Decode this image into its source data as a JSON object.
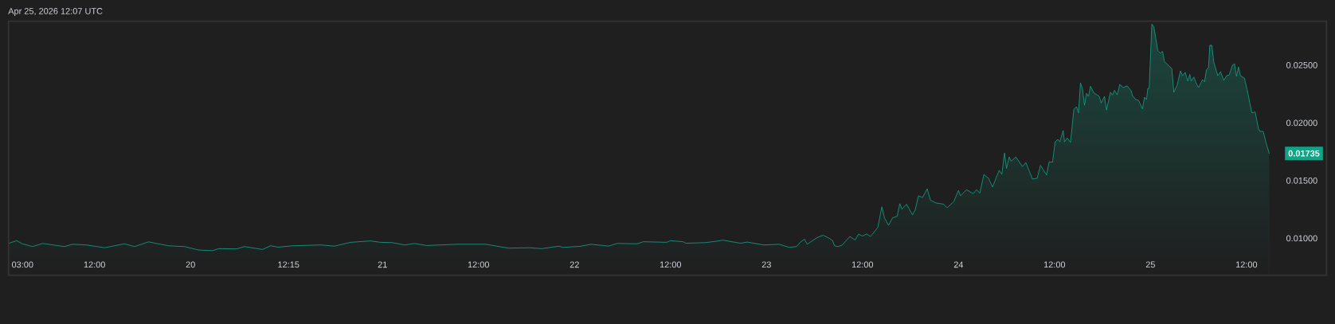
{
  "chart_data": {
    "type": "area",
    "title": "Apr 25, 2026 12:07 UTC",
    "color": "#12a386",
    "xlim": [
      "2026-04-19T01:15",
      "2026-04-25T22:00"
    ],
    "ylim": [
      0.0068,
      0.0288
    ],
    "xticks": [
      {
        "value": "2026-04-19T03:00",
        "label": "03:00"
      },
      {
        "value": "2026-04-19T12:00",
        "label": "12:00"
      },
      {
        "value": "2026-04-20",
        "label": "20"
      },
      {
        "value": "2026-04-20T12:15",
        "label": "12:15"
      },
      {
        "value": "2026-04-21",
        "label": "21"
      },
      {
        "value": "2026-04-21T12:00",
        "label": "12:00"
      },
      {
        "value": "2026-04-22",
        "label": "22"
      },
      {
        "value": "2026-04-22T12:00",
        "label": "12:00"
      },
      {
        "value": "2026-04-23",
        "label": "23"
      },
      {
        "value": "2026-04-23T12:00",
        "label": "12:00"
      },
      {
        "value": "2026-04-24",
        "label": "24"
      },
      {
        "value": "2026-04-24T12:00",
        "label": "12:00"
      },
      {
        "value": "2026-04-25",
        "label": "25"
      },
      {
        "value": "2026-04-25T12:00",
        "label": "12:00"
      }
    ],
    "yticks": [
      {
        "value": 0.01,
        "label": "0.01000"
      },
      {
        "value": 0.015,
        "label": "0.01500"
      },
      {
        "value": 0.02,
        "label": "0.02000"
      },
      {
        "value": 0.025,
        "label": "0.02500"
      }
    ],
    "x": [
      "2026-04-19T01:15",
      "2026-04-19T02:15",
      "2026-04-19T03:00",
      "2026-04-19T04:15",
      "2026-04-19T05:30",
      "2026-04-19T08:15",
      "2026-04-19T09:15",
      "2026-04-19T11:00",
      "2026-04-19T13:15",
      "2026-04-19T15:45",
      "2026-04-19T17:00",
      "2026-04-19T18:45",
      "2026-04-19T19:45",
      "2026-04-19T21:15",
      "2026-04-19T23:15",
      "2026-04-20T01:00",
      "2026-04-20T02:45",
      "2026-04-20T03:30",
      "2026-04-20T05:45",
      "2026-04-20T06:45",
      "2026-04-20T09:00",
      "2026-04-20T10:00",
      "2026-04-20T11:00",
      "2026-04-20T12:45",
      "2026-04-20T16:15",
      "2026-04-20T18:00",
      "2026-04-20T20:00",
      "2026-04-20T22:30",
      "2026-04-20T23:45",
      "2026-04-21T01:15",
      "2026-04-21T02:45",
      "2026-04-21T04:00",
      "2026-04-21T05:30",
      "2026-04-21T09:15",
      "2026-04-21T12:55",
      "2026-04-21T15:00",
      "2026-04-21T15:50",
      "2026-04-21T18:25",
      "2026-04-21T19:55",
      "2026-04-21T22:05",
      "2026-04-21T22:30",
      "2026-04-22T00:40",
      "2026-04-22T02:05",
      "2026-04-22T04:15",
      "2026-04-22T05:20",
      "2026-04-22T07:50",
      "2026-04-22T08:35",
      "2026-04-22T11:30",
      "2026-04-22T12:00",
      "2026-04-22T13:35",
      "2026-04-22T13:55",
      "2026-04-22T16:20",
      "2026-04-22T18:00",
      "2026-04-22T18:30",
      "2026-04-22T20:45",
      "2026-04-22T21:35",
      "2026-04-22T23:40",
      "2026-04-23T01:35",
      "2026-04-23T02:50",
      "2026-04-23T03:45",
      "2026-04-23T04:15",
      "2026-04-23T04:45",
      "2026-04-23T05:05",
      "2026-04-23T06:20",
      "2026-04-23T07:05",
      "2026-04-23T07:55",
      "2026-04-23T08:15",
      "2026-04-23T08:30",
      "2026-04-23T08:55",
      "2026-04-23T09:25",
      "2026-04-23T10:25",
      "2026-04-23T11:05",
      "2026-04-23T11:30",
      "2026-04-23T12:00",
      "2026-04-23T12:30",
      "2026-04-23T13:00",
      "2026-04-23T13:55",
      "2026-04-23T14:25",
      "2026-04-23T14:45",
      "2026-04-23T15:15",
      "2026-04-23T15:45",
      "2026-04-23T16:20",
      "2026-04-23T16:40",
      "2026-04-23T16:55",
      "2026-04-23T17:30",
      "2026-04-23T18:15",
      "2026-04-23T18:35",
      "2026-04-23T19:00",
      "2026-04-23T19:30",
      "2026-04-23T20:05",
      "2026-04-23T20:30",
      "2026-04-23T21:10",
      "2026-04-23T22:10",
      "2026-04-23T22:35",
      "2026-04-23T23:25",
      "2026-04-24T00:00",
      "2026-04-24T00:15",
      "2026-04-24T01:00",
      "2026-04-24T01:50",
      "2026-04-24T02:15",
      "2026-04-24T02:40",
      "2026-04-24T03:10",
      "2026-04-24T03:45",
      "2026-04-24T04:15",
      "2026-04-24T05:05",
      "2026-04-24T05:25",
      "2026-04-24T05:45",
      "2026-04-24T06:00",
      "2026-04-24T06:20",
      "2026-04-24T06:35",
      "2026-04-24T07:10",
      "2026-04-24T08:00",
      "2026-04-24T08:25",
      "2026-04-24T09:15",
      "2026-04-24T09:50",
      "2026-04-24T10:15",
      "2026-04-24T11:00",
      "2026-04-24T11:20",
      "2026-04-24T11:45",
      "2026-04-24T12:05",
      "2026-04-24T12:25",
      "2026-04-24T12:40",
      "2026-04-24T13:05",
      "2026-04-24T13:15",
      "2026-04-24T13:35",
      "2026-04-24T14:00",
      "2026-04-24T14:25",
      "2026-04-24T14:45",
      "2026-04-24T15:00",
      "2026-04-24T15:15",
      "2026-04-24T15:30",
      "2026-04-24T15:45",
      "2026-04-24T16:00",
      "2026-04-24T16:15",
      "2026-04-24T16:30",
      "2026-04-24T16:55",
      "2026-04-24T17:35",
      "2026-04-24T17:50",
      "2026-04-24T18:15",
      "2026-04-24T18:30",
      "2026-04-24T19:00",
      "2026-04-24T19:15",
      "2026-04-24T19:30",
      "2026-04-24T19:50",
      "2026-04-24T20:10",
      "2026-04-24T20:35",
      "2026-04-24T21:05",
      "2026-04-24T21:35",
      "2026-04-24T21:45",
      "2026-04-24T22:10",
      "2026-04-24T22:30",
      "2026-04-24T23:00",
      "2026-04-24T23:15",
      "2026-04-24T23:30",
      "2026-04-24T23:40",
      "2026-04-24T23:50",
      "2026-04-25T00:10",
      "2026-04-25T00:25",
      "2026-04-25T00:55",
      "2026-04-25T01:15",
      "2026-04-25T01:30",
      "2026-04-25T01:45",
      "2026-04-25T02:40",
      "2026-04-25T02:55",
      "2026-04-25T03:20",
      "2026-04-25T03:45",
      "2026-04-25T04:00",
      "2026-04-25T04:20",
      "2026-04-25T04:40",
      "2026-04-25T04:55",
      "2026-04-25T05:05",
      "2026-04-25T05:25",
      "2026-04-25T05:40",
      "2026-04-25T06:00",
      "2026-04-25T06:30",
      "2026-04-25T06:45",
      "2026-04-25T07:00",
      "2026-04-25T07:15",
      "2026-04-25T07:25",
      "2026-04-25T07:40",
      "2026-04-25T07:55",
      "2026-04-25T08:25",
      "2026-04-25T08:45",
      "2026-04-25T09:10",
      "2026-04-25T09:30",
      "2026-04-25T09:50",
      "2026-04-25T10:15",
      "2026-04-25T10:30",
      "2026-04-25T10:45",
      "2026-04-25T11:00",
      "2026-04-25T11:15",
      "2026-04-25T11:45",
      "2026-04-25T12:05",
      "2026-04-25T12:40",
      "2026-04-25T13:05",
      "2026-04-25T13:30",
      "2026-04-25T13:40",
      "2026-04-25T14:05",
      "2026-04-25T14:25",
      "2026-04-25T14:50"
    ],
    "values": [
      0.00955,
      0.00979,
      0.00952,
      0.00928,
      0.00955,
      0.00928,
      0.00948,
      0.00942,
      0.00918,
      0.00952,
      0.00928,
      0.00969,
      0.00955,
      0.00935,
      0.00928,
      0.00898,
      0.00893,
      0.0091,
      0.00908,
      0.00928,
      0.00903,
      0.00935,
      0.00923,
      0.00935,
      0.00942,
      0.00932,
      0.00965,
      0.00977,
      0.00965,
      0.00962,
      0.00942,
      0.00955,
      0.00937,
      0.00948,
      0.00948,
      0.00923,
      0.00915,
      0.00918,
      0.0091,
      0.00932,
      0.00921,
      0.0093,
      0.00948,
      0.00932,
      0.00955,
      0.00952,
      0.0097,
      0.00965,
      0.00979,
      0.0097,
      0.00957,
      0.00962,
      0.00977,
      0.00984,
      0.00957,
      0.00967,
      0.00942,
      0.00948,
      0.00921,
      0.00928,
      0.00967,
      0.00992,
      0.00948,
      0.01006,
      0.01026,
      0.00997,
      0.00981,
      0.00935,
      0.00928,
      0.00939,
      0.01015,
      0.00985,
      0.01036,
      0.01019,
      0.01038,
      0.01015,
      0.01095,
      0.01272,
      0.01176,
      0.01112,
      0.01176,
      0.01191,
      0.013,
      0.01253,
      0.01295,
      0.01203,
      0.01245,
      0.01368,
      0.01353,
      0.01428,
      0.01329,
      0.01306,
      0.01295,
      0.01265,
      0.01318,
      0.01415,
      0.01368,
      0.01421,
      0.01387,
      0.01421,
      0.01391,
      0.01552,
      0.0152,
      0.01444,
      0.01589,
      0.01554,
      0.01738,
      0.01605,
      0.01704,
      0.01667,
      0.01704,
      0.01621,
      0.01656,
      0.01513,
      0.0152,
      0.01632,
      0.01548,
      0.01663,
      0.01658,
      0.01835,
      0.01857,
      0.01835,
      0.01933,
      0.01835,
      0.01869,
      0.0183,
      0.02117,
      0.0214,
      0.02087,
      0.02346,
      0.02293,
      0.02152,
      0.02255,
      0.02229,
      0.02317,
      0.02259,
      0.02231,
      0.02172,
      0.02229,
      0.0211,
      0.02266,
      0.02241,
      0.02282,
      0.02243,
      0.02333,
      0.02305,
      0.02321,
      0.02278,
      0.02236,
      0.02202,
      0.02195,
      0.02121,
      0.02222,
      0.02202,
      0.02298,
      0.02298,
      0.02856,
      0.02833,
      0.02627,
      0.02603,
      0.0262,
      0.0253,
      0.0247,
      0.02264,
      0.02328,
      0.0245,
      0.02408,
      0.02438,
      0.02362,
      0.0242,
      0.02362,
      0.02397,
      0.02351,
      0.02305,
      0.02374,
      0.02355,
      0.02461,
      0.02477,
      0.02672,
      0.02672,
      0.02523,
      0.02408,
      0.02443,
      0.02367,
      0.02408,
      0.02415,
      0.025,
      0.02512,
      0.02402,
      0.02484,
      0.02408,
      0.02386,
      0.02287,
      0.02087,
      0.02094,
      0.01949,
      0.01926,
      0.01926,
      0.01835,
      0.01735
    ],
    "annotations": [
      "0.01735"
    ]
  }
}
